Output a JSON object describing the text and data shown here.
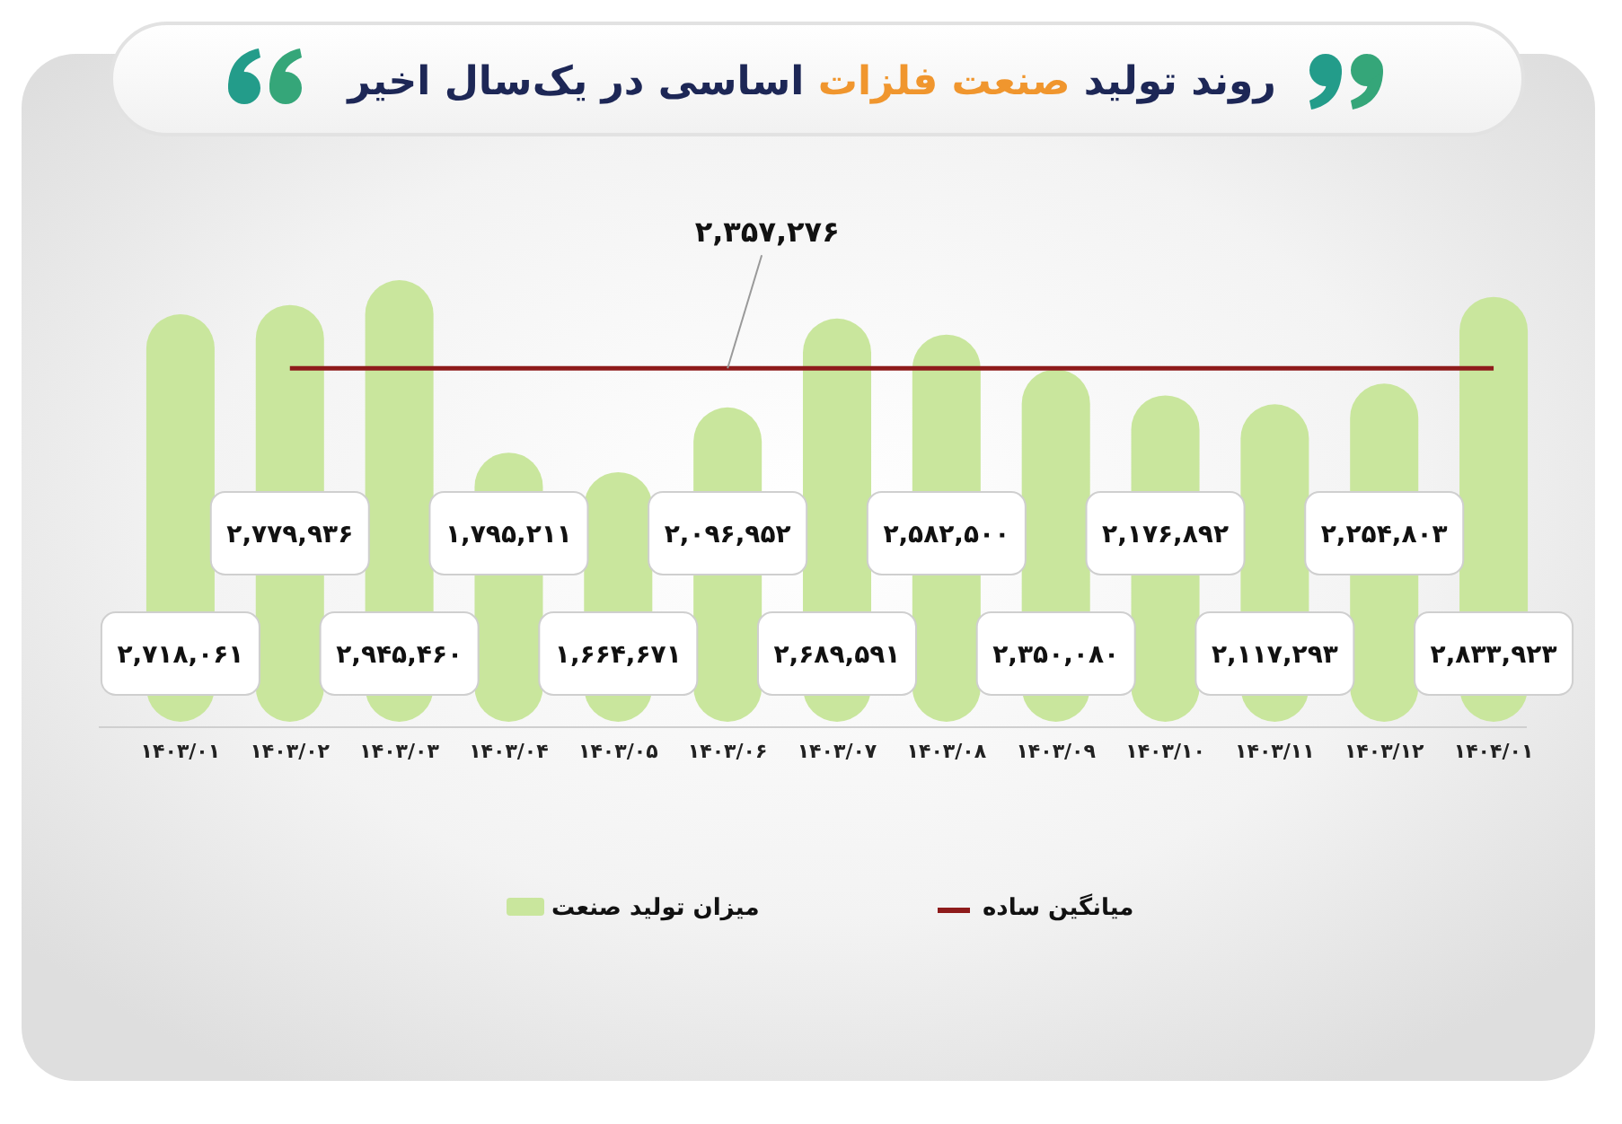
{
  "chart_data": {
    "type": "bar",
    "title": "روند تولید صنعت فلزات اساسی در یک‌سال اخیر",
    "categories": [
      "۱۴۰۳/۰۱",
      "۱۴۰۳/۰۲",
      "۱۴۰۳/۰۳",
      "۱۴۰۳/۰۴",
      "۱۴۰۳/۰۵",
      "۱۴۰۳/۰۶",
      "۱۴۰۳/۰۷",
      "۱۴۰۳/۰۸",
      "۱۴۰۳/۰۹",
      "۱۴۰۳/۱۰",
      "۱۴۰۳/۱۱",
      "۱۴۰۳/۱۲",
      "۱۴۰۴/۰۱"
    ],
    "series": [
      {
        "name": "میزان تولید صنعت",
        "color": "#c9e69d",
        "values": [
          2718061,
          2779936,
          2945460,
          1795211,
          1664671,
          2096952,
          2689591,
          2582500,
          2350080,
          2176892,
          2117293,
          2254803,
          2833923
        ],
        "value_labels": [
          "۲,۷۱۸,۰۶۱",
          "۲,۷۷۹,۹۳۶",
          "۲,۹۴۵,۴۶۰",
          "۱,۷۹۵,۲۱۱",
          "۱,۶۶۴,۶۷۱",
          "۲,۰۹۶,۹۵۲",
          "۲,۶۸۹,۵۹۱",
          "۲,۵۸۲,۵۰۰",
          "۲,۳۵۰,۰۸۰",
          "۲,۱۷۶,۸۹۲",
          "۲,۱۱۷,۲۹۳",
          "۲,۲۵۴,۸۰۳",
          "۲,۸۳۳,۹۲۳"
        ]
      },
      {
        "type": "line",
        "name": "میانگین ساده",
        "color": "#8e1b1b",
        "values": [
          null,
          2357276,
          2357276,
          2357276,
          2357276,
          2357276,
          2357276,
          2357276,
          2357276,
          2357276,
          2357276,
          2357276,
          2357276
        ]
      }
    ],
    "annotations": [
      {
        "text": "۲,۳۵۷,۲۷۶",
        "x": "۱۴۰۳/۰۶",
        "y": 2357276
      }
    ],
    "legend": "bottom"
  }
}
